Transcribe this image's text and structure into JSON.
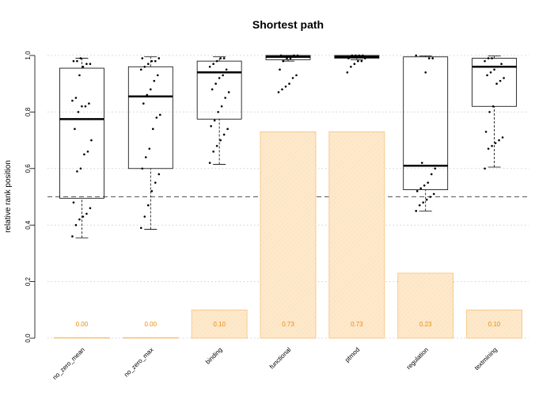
{
  "chart_data": {
    "type": "boxplot",
    "title": "Shortest path",
    "xlabel": "",
    "ylabel": "relative rank position",
    "ylim": [
      0,
      1
    ],
    "yticks": [
      0.0,
      0.2,
      0.4,
      0.6,
      0.8,
      1.0
    ],
    "ytick_labels": [
      "0.0",
      "0.2",
      "0.4",
      "0.6",
      "0.8",
      "1.0"
    ],
    "grid": "horizontal-dotted",
    "reference_line": 0.5,
    "colors": {
      "bar_fill": "#fde9cc",
      "bar_stroke": "#f5c27a",
      "bar_label": "#f08a0a",
      "box": "#000000",
      "grid": "#d0d0d0"
    },
    "categories": [
      "no_zero_mean",
      "no_zero_max",
      "binding",
      "functional",
      "ptmod",
      "regulation",
      "textmining"
    ],
    "bars": {
      "values": [
        0.0,
        0.0,
        0.1,
        0.73,
        0.73,
        0.23,
        0.1
      ],
      "labels": [
        "0.00",
        "0.00",
        "0.10",
        "0.73",
        "0.73",
        "0.23",
        "0.10"
      ]
    },
    "boxes": [
      {
        "whisker_low": 0.355,
        "q1": 0.495,
        "median": 0.775,
        "q3": 0.955,
        "whisker_high": 0.99,
        "points": [
          0.36,
          0.4,
          0.42,
          0.43,
          0.44,
          0.46,
          0.48,
          0.59,
          0.6,
          0.65,
          0.66,
          0.7,
          0.74,
          0.8,
          0.82,
          0.82,
          0.83,
          0.84,
          0.85,
          0.93,
          0.96,
          0.97,
          0.97,
          0.98,
          0.98,
          0.99
        ]
      },
      {
        "whisker_low": 0.385,
        "q1": 0.6,
        "median": 0.855,
        "q3": 0.96,
        "whisker_high": 0.995,
        "points": [
          0.39,
          0.43,
          0.47,
          0.52,
          0.55,
          0.58,
          0.6,
          0.64,
          0.67,
          0.74,
          0.78,
          0.79,
          0.83,
          0.86,
          0.88,
          0.91,
          0.93,
          0.95,
          0.96,
          0.97,
          0.98,
          0.98,
          0.99,
          0.99
        ]
      },
      {
        "whisker_low": 0.615,
        "q1": 0.775,
        "median": 0.94,
        "q3": 0.98,
        "whisker_high": 0.995,
        "points": [
          0.62,
          0.66,
          0.68,
          0.7,
          0.72,
          0.74,
          0.75,
          0.77,
          0.8,
          0.82,
          0.85,
          0.87,
          0.88,
          0.9,
          0.92,
          0.93,
          0.95,
          0.96,
          0.97,
          0.98,
          0.99,
          0.99
        ]
      },
      {
        "whisker_low": 0.98,
        "q1": 0.985,
        "median": 0.995,
        "q3": 1.0,
        "whisker_high": 1.0,
        "points": [
          0.87,
          0.88,
          0.89,
          0.9,
          0.92,
          0.93,
          0.95,
          0.98,
          0.99,
          0.99,
          1.0,
          1.0,
          1.0
        ]
      },
      {
        "whisker_low": 0.985,
        "q1": 0.99,
        "median": 0.995,
        "q3": 1.0,
        "whisker_high": 1.0,
        "points": [
          0.94,
          0.96,
          0.97,
          0.98,
          0.98,
          0.99,
          0.99,
          1.0,
          1.0,
          1.0,
          1.0
        ]
      },
      {
        "whisker_low": 0.45,
        "q1": 0.525,
        "median": 0.61,
        "q3": 0.995,
        "whisker_high": 0.998,
        "points": [
          0.45,
          0.47,
          0.48,
          0.49,
          0.5,
          0.51,
          0.52,
          0.53,
          0.54,
          0.55,
          0.58,
          0.6,
          0.61,
          0.62,
          0.94,
          0.99,
          0.99,
          1.0
        ]
      },
      {
        "whisker_low": 0.605,
        "q1": 0.82,
        "median": 0.96,
        "q3": 0.99,
        "whisker_high": 0.998,
        "points": [
          0.6,
          0.67,
          0.68,
          0.69,
          0.7,
          0.71,
          0.73,
          0.8,
          0.82,
          0.9,
          0.91,
          0.92,
          0.93,
          0.94,
          0.95,
          0.96,
          0.97,
          0.98,
          0.99,
          0.99
        ]
      }
    ]
  }
}
